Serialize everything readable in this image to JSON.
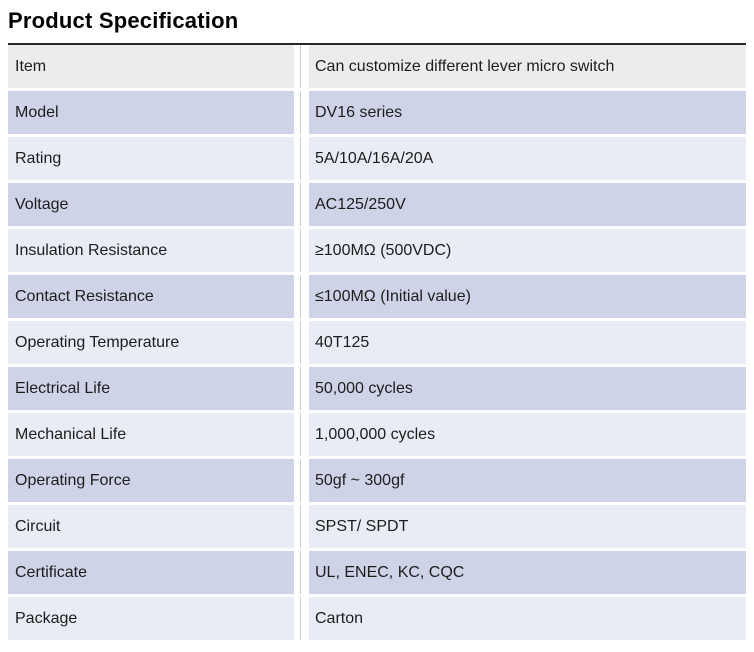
{
  "page": {
    "title": "Product Specification"
  },
  "table": {
    "rows": [
      {
        "label": "Item",
        "value": "Can customize different lever micro switch"
      },
      {
        "label": "Model",
        "value": "DV16 series"
      },
      {
        "label": "Rating",
        "value": "5A/10A/16A/20A"
      },
      {
        "label": "Voltage",
        "value": "AC125/250V"
      },
      {
        "label": "Insulation Resistance",
        "value": "≥100MΩ (500VDC)"
      },
      {
        "label": "Contact Resistance",
        "value": "≤100MΩ (Initial value)"
      },
      {
        "label": "Operating Temperature",
        "value": "40T125"
      },
      {
        "label": "Electrical Life",
        "value": "50,000 cycles"
      },
      {
        "label": "Mechanical Life",
        "value": "1,000,000 cycles"
      },
      {
        "label": "Operating Force",
        "value": "50gf ~ 300gf"
      },
      {
        "label": "Circuit",
        "value": "SPST/ SPDT"
      },
      {
        "label": "Certificate",
        "value": "UL, ENEC, KC, CQC"
      },
      {
        "label": "Package",
        "value": "Carton"
      }
    ],
    "colors": {
      "header_row_bg": "#ececec",
      "row_alt_dark": "#ced3e8",
      "row_alt_light": "#e9ebf5",
      "top_border": "#262626",
      "divider_line": "#c9ccd8",
      "text": "#1d1d1d"
    }
  }
}
